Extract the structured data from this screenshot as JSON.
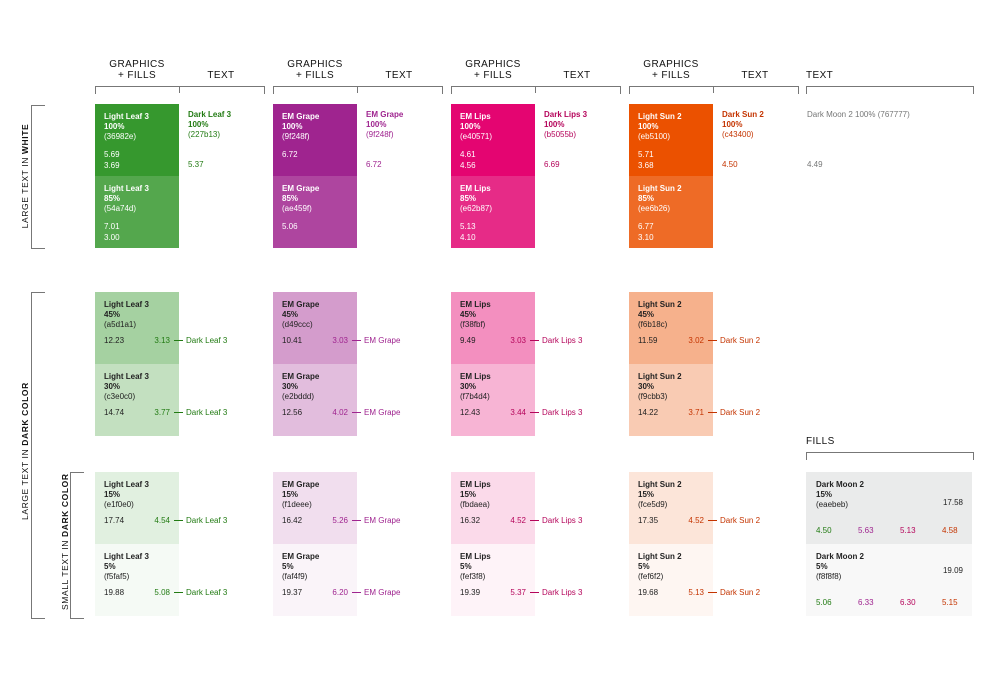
{
  "headers": {
    "graphics_fills": [
      "GRAPHICS",
      "+ FILLS"
    ],
    "text": "TEXT",
    "fills": "FILLS"
  },
  "side_labels": {
    "large_white_a": "LARGE TEXT IN ",
    "large_white_b": "WHITE",
    "large_dark_a": "LARGE TEXT IN ",
    "large_dark_b": "DARK COLOR",
    "small_dark_a": "SMALL TEXT IN ",
    "small_dark_b": "DARK COLOR"
  },
  "colors": {
    "leaf": {
      "c100": "#36982e",
      "c85": "#54a74d",
      "c45": "#a5d1a1",
      "c30": "#c3e0c0",
      "c15": "#e1f0e0",
      "c5": "#f5faf5",
      "text": "#227b13"
    },
    "grape": {
      "c100": "#9f248f",
      "c85": "#ae459f",
      "c45": "#d49ccc",
      "c30": "#e2bddd",
      "c15": "#f1deee",
      "c5": "#faf4f9",
      "text": "#9f248f"
    },
    "lips": {
      "c100": "#e40571",
      "c85": "#e62b87",
      "c45": "#f38fbf",
      "c30": "#f7b4d4",
      "c15": "#fbdaea",
      "c5": "#fef3f8",
      "text": "#b5055b"
    },
    "sun": {
      "c100": "#eb5100",
      "c85": "#ee6b26",
      "c45": "#f6b18c",
      "c30": "#f9cbb3",
      "c15": "#fce5d9",
      "c5": "#fef6f2",
      "text": "#c43400"
    },
    "moon": {
      "text": "#767777",
      "c15": "#eaebeb",
      "c5": "#f8f8f8"
    }
  },
  "cols": [
    {
      "top": [
        {
          "name": "Light Leaf 3",
          "pct": "100%",
          "hex": "(36982e)",
          "v1": "5.69",
          "v2": "3.69"
        },
        {
          "name": "Light Leaf 3",
          "pct": "85%",
          "hex": "(54a74d)",
          "v1": "7.01",
          "v2": "3.00"
        }
      ],
      "text": {
        "name": "Dark Leaf 3",
        "pct": "100%",
        "hex": "(227b13)",
        "val": "5.37"
      },
      "mid": [
        {
          "name": "Light Leaf 3",
          "pct": "45%",
          "hex": "(a5d1a1)",
          "vl": "12.23",
          "vr": "3.13",
          "ann": "Dark Leaf 3"
        },
        {
          "name": "Light Leaf 3",
          "pct": "30%",
          "hex": "(c3e0c0)",
          "vl": "14.74",
          "vr": "3.77",
          "ann": "Dark Leaf 3"
        }
      ],
      "low": [
        {
          "name": "Light Leaf 3",
          "pct": "15%",
          "hex": "(e1f0e0)",
          "vl": "17.74",
          "vr": "4.54",
          "ann": "Dark Leaf 3"
        },
        {
          "name": "Light Leaf 3",
          "pct": "5%",
          "hex": "(f5faf5)",
          "vl": "19.88",
          "vr": "5.08",
          "ann": "Dark Leaf 3"
        }
      ]
    },
    {
      "top": [
        {
          "name": "EM Grape",
          "pct": "100%",
          "hex": "(9f248f)",
          "v1": "6.72",
          "v2": ""
        },
        {
          "name": "EM Grape",
          "pct": "85%",
          "hex": "(ae459f)",
          "v1": "5.06",
          "v2": ""
        }
      ],
      "text": {
        "name": "EM Grape",
        "pct": "100%",
        "hex": "(9f248f)",
        "val": "6.72"
      },
      "mid": [
        {
          "name": "EM Grape",
          "pct": "45%",
          "hex": "(d49ccc)",
          "vl": "10.41",
          "vr": "3.03",
          "ann": "EM Grape"
        },
        {
          "name": "EM Grape",
          "pct": "30%",
          "hex": "(e2bddd)",
          "vl": "12.56",
          "vr": "4.02",
          "ann": "EM Grape"
        }
      ],
      "low": [
        {
          "name": "EM Grape",
          "pct": "15%",
          "hex": "(f1deee)",
          "vl": "16.42",
          "vr": "5.26",
          "ann": "EM Grape"
        },
        {
          "name": "EM Grape",
          "pct": "5%",
          "hex": "(faf4f9)",
          "vl": "19.37",
          "vr": "6.20",
          "ann": "EM Grape"
        }
      ]
    },
    {
      "top": [
        {
          "name": "EM Lips",
          "pct": "100%",
          "hex": "(e40571)",
          "v1": "4.61",
          "v2": "4.56"
        },
        {
          "name": "EM Lips",
          "pct": "85%",
          "hex": "(e62b87)",
          "v1": "5.13",
          "v2": "4.10"
        }
      ],
      "text": {
        "name": "Dark Lips 3",
        "pct": "100%",
        "hex": "(b5055b)",
        "val": "6.69"
      },
      "mid": [
        {
          "name": "EM Lips",
          "pct": "45%",
          "hex": "(f38fbf)",
          "vl": "9.49",
          "vr": "3.03",
          "ann": "Dark Lips 3"
        },
        {
          "name": "EM Lips",
          "pct": "30%",
          "hex": "(f7b4d4)",
          "vl": "12.43",
          "vr": "3.44",
          "ann": "Dark Lips 3"
        }
      ],
      "low": [
        {
          "name": "EM Lips",
          "pct": "15%",
          "hex": "(fbdaea)",
          "vl": "16.32",
          "vr": "4.52",
          "ann": "Dark Lips 3"
        },
        {
          "name": "EM Lips",
          "pct": "5%",
          "hex": "(fef3f8)",
          "vl": "19.39",
          "vr": "5.37",
          "ann": "Dark Lips 3"
        }
      ]
    },
    {
      "top": [
        {
          "name": "Light Sun 2",
          "pct": "100%",
          "hex": "(eb5100)",
          "v1": "5.71",
          "v2": "3.68"
        },
        {
          "name": "Light Sun 2",
          "pct": "85%",
          "hex": "(ee6b26)",
          "v1": "6.77",
          "v2": "3.10"
        }
      ],
      "text": {
        "name": "Dark Sun 2",
        "pct": "100%",
        "hex": "(c43400)",
        "val": "4.50"
      },
      "mid": [
        {
          "name": "Light Sun 2",
          "pct": "45%",
          "hex": "(f6b18c)",
          "vl": "11.59",
          "vr": "3.02",
          "ann": "Dark Sun 2"
        },
        {
          "name": "Light Sun 2",
          "pct": "30%",
          "hex": "(f9cbb3)",
          "vl": "14.22",
          "vr": "3.71",
          "ann": "Dark Sun 2"
        }
      ],
      "low": [
        {
          "name": "Light Sun 2",
          "pct": "15%",
          "hex": "(fce5d9)",
          "vl": "17.35",
          "vr": "4.52",
          "ann": "Dark Sun 2"
        },
        {
          "name": "Light Sun 2",
          "pct": "5%",
          "hex": "(fef6f2)",
          "vl": "19.68",
          "vr": "5.13",
          "ann": "Dark Sun 2"
        }
      ]
    }
  ],
  "moon_text": {
    "name": "Dark Moon 2",
    "pct": "100%",
    "hex": "(767777)",
    "val": "4.49"
  },
  "moon_fills": [
    {
      "name": "Dark Moon 2",
      "pct": "15%",
      "hex": "(eaebeb)",
      "main": "17.58",
      "vals": [
        "4.50",
        "5.63",
        "5.13",
        "4.58"
      ]
    },
    {
      "name": "Dark Moon 2",
      "pct": "5%",
      "hex": "(f8f8f8)",
      "main": "19.09",
      "vals": [
        "5.06",
        "6.33",
        "6.30",
        "5.15"
      ]
    }
  ]
}
